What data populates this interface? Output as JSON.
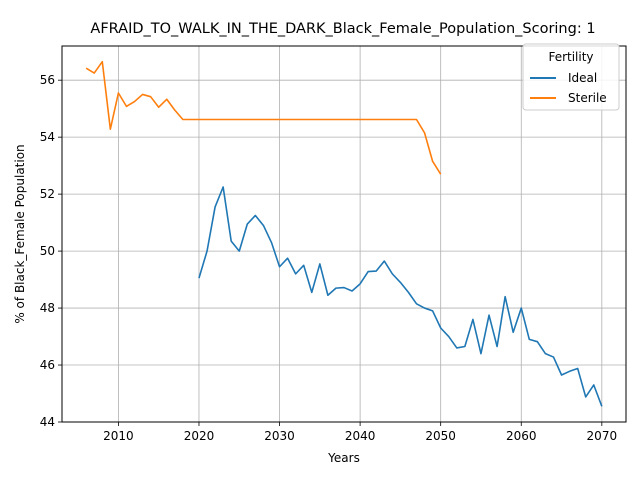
{
  "chart_data": {
    "type": "line",
    "title": "AFRAID_TO_WALK_IN_THE_DARK_Black_Female_Population_Scoring: 1",
    "xlabel": "Years",
    "ylabel": "% of Black_Female Population",
    "xlim": [
      2003,
      2073
    ],
    "ylim": [
      44,
      57.2
    ],
    "xticks": [
      2010,
      2020,
      2030,
      2040,
      2050,
      2060,
      2070
    ],
    "yticks": [
      44,
      46,
      48,
      50,
      52,
      54,
      56
    ],
    "grid": true,
    "legend": {
      "title": "Fertility",
      "position": "top-right"
    },
    "series": [
      {
        "name": "Ideal",
        "color": "#1f77b4",
        "x": [
          2020,
          2021,
          2022,
          2023,
          2024,
          2025,
          2026,
          2027,
          2028,
          2029,
          2030,
          2031,
          2032,
          2033,
          2034,
          2035,
          2036,
          2037,
          2038,
          2039,
          2040,
          2041,
          2042,
          2043,
          2044,
          2045,
          2046,
          2047,
          2048,
          2049,
          2050,
          2051,
          2052,
          2053,
          2054,
          2055,
          2056,
          2057,
          2058,
          2059,
          2060,
          2061,
          2062,
          2063,
          2064,
          2065,
          2066,
          2067,
          2068,
          2069,
          2070
        ],
        "values": [
          49.05,
          50.0,
          51.55,
          52.25,
          50.35,
          50.0,
          50.95,
          51.25,
          50.9,
          50.3,
          49.45,
          49.75,
          49.2,
          49.5,
          48.55,
          49.55,
          48.45,
          48.7,
          48.72,
          48.6,
          48.85,
          49.28,
          49.3,
          49.65,
          49.2,
          48.9,
          48.55,
          48.15,
          48.0,
          47.9,
          47.3,
          47.0,
          46.6,
          46.65,
          47.6,
          46.4,
          47.75,
          46.65,
          48.4,
          47.15,
          48.0,
          46.9,
          46.82,
          46.4,
          46.28,
          45.65,
          45.78,
          45.88,
          44.88,
          45.3,
          44.55
        ]
      },
      {
        "name": "Sterile",
        "color": "#ff7f0e",
        "x": [
          2006,
          2007,
          2008,
          2009,
          2010,
          2011,
          2012,
          2013,
          2014,
          2015,
          2016,
          2017,
          2018,
          2019,
          2020,
          2021,
          2022,
          2023,
          2024,
          2025,
          2026,
          2027,
          2028,
          2029,
          2030,
          2031,
          2032,
          2033,
          2034,
          2035,
          2036,
          2037,
          2038,
          2039,
          2040,
          2041,
          2042,
          2043,
          2044,
          2045,
          2046,
          2047,
          2048,
          2049,
          2050
        ],
        "values": [
          56.42,
          56.25,
          56.65,
          54.28,
          55.55,
          55.08,
          55.25,
          55.5,
          55.42,
          55.05,
          55.33,
          54.95,
          54.62,
          54.62,
          54.62,
          54.62,
          54.62,
          54.62,
          54.62,
          54.62,
          54.62,
          54.62,
          54.62,
          54.62,
          54.62,
          54.62,
          54.62,
          54.62,
          54.62,
          54.62,
          54.62,
          54.62,
          54.62,
          54.62,
          54.62,
          54.62,
          54.62,
          54.62,
          54.62,
          54.62,
          54.62,
          54.62,
          54.15,
          53.15,
          52.7
        ]
      }
    ]
  }
}
